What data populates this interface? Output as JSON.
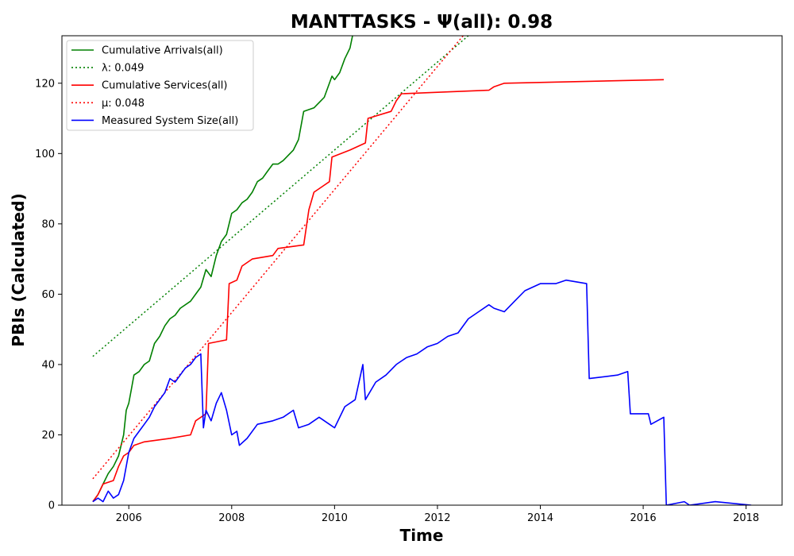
{
  "chart_data": {
    "type": "line",
    "title": "MANTTASKS -  Ψ(all): 0.98",
    "xlabel": "Time",
    "ylabel": "PBIs (Calculated)",
    "xlim": [
      2004.7,
      2018.7
    ],
    "ylim": [
      0,
      133.5
    ],
    "x_ticks": [
      2006,
      2008,
      2010,
      2012,
      2014,
      2016,
      2018
    ],
    "y_ticks": [
      0,
      20,
      40,
      60,
      80,
      100,
      120
    ],
    "grid": false,
    "legend_position": "upper left",
    "series": [
      {
        "name": "Cumulative Arrivals(all)",
        "color": "#008000",
        "style": "solid",
        "points": [
          [
            2005.3,
            1
          ],
          [
            2005.4,
            3
          ],
          [
            2005.5,
            6
          ],
          [
            2005.6,
            9
          ],
          [
            2005.7,
            11
          ],
          [
            2005.8,
            14
          ],
          [
            2005.9,
            20
          ],
          [
            2005.95,
            27
          ],
          [
            2006.0,
            29
          ],
          [
            2006.05,
            33
          ],
          [
            2006.1,
            37
          ],
          [
            2006.2,
            38
          ],
          [
            2006.3,
            40
          ],
          [
            2006.4,
            41
          ],
          [
            2006.5,
            46
          ],
          [
            2006.6,
            48
          ],
          [
            2006.7,
            51
          ],
          [
            2006.8,
            53
          ],
          [
            2006.9,
            54
          ],
          [
            2007.0,
            56
          ],
          [
            2007.2,
            58
          ],
          [
            2007.3,
            60
          ],
          [
            2007.4,
            62
          ],
          [
            2007.5,
            67
          ],
          [
            2007.6,
            65
          ],
          [
            2007.7,
            71
          ],
          [
            2007.8,
            75
          ],
          [
            2007.9,
            77
          ],
          [
            2008.0,
            83
          ],
          [
            2008.1,
            84
          ],
          [
            2008.2,
            86
          ],
          [
            2008.3,
            87
          ],
          [
            2008.4,
            89
          ],
          [
            2008.5,
            92
          ],
          [
            2008.6,
            93
          ],
          [
            2008.7,
            95
          ],
          [
            2008.8,
            97
          ],
          [
            2008.9,
            97
          ],
          [
            2009.0,
            98
          ],
          [
            2009.2,
            101
          ],
          [
            2009.3,
            104
          ],
          [
            2009.4,
            112
          ],
          [
            2009.6,
            113
          ],
          [
            2009.8,
            116
          ],
          [
            2009.95,
            122
          ],
          [
            2010.0,
            121
          ],
          [
            2010.1,
            123
          ],
          [
            2010.2,
            127
          ],
          [
            2010.3,
            130
          ],
          [
            2010.35,
            133.5
          ]
        ]
      },
      {
        "name": "λ: 0.049",
        "color": "#008000",
        "style": "dotted",
        "points": [
          [
            2005.3,
            42.3
          ],
          [
            2012.6,
            133.5
          ]
        ]
      },
      {
        "name": "Cumulative Services(all)",
        "color": "#ff0000",
        "style": "solid",
        "points": [
          [
            2005.3,
            1
          ],
          [
            2005.4,
            3
          ],
          [
            2005.5,
            6
          ],
          [
            2005.7,
            7
          ],
          [
            2005.8,
            11
          ],
          [
            2005.9,
            14
          ],
          [
            2006.0,
            15
          ],
          [
            2006.1,
            17
          ],
          [
            2006.3,
            18
          ],
          [
            2006.8,
            19
          ],
          [
            2007.2,
            20
          ],
          [
            2007.3,
            24
          ],
          [
            2007.5,
            26
          ],
          [
            2007.55,
            46
          ],
          [
            2007.9,
            47
          ],
          [
            2007.95,
            63
          ],
          [
            2008.1,
            64
          ],
          [
            2008.2,
            68
          ],
          [
            2008.4,
            70
          ],
          [
            2008.8,
            71
          ],
          [
            2008.9,
            73
          ],
          [
            2009.4,
            74
          ],
          [
            2009.5,
            84
          ],
          [
            2009.6,
            89
          ],
          [
            2009.8,
            91
          ],
          [
            2009.9,
            92
          ],
          [
            2009.95,
            99
          ],
          [
            2010.3,
            101
          ],
          [
            2010.6,
            103
          ],
          [
            2010.65,
            110
          ],
          [
            2011.1,
            112
          ],
          [
            2011.2,
            115
          ],
          [
            2011.3,
            117
          ],
          [
            2013.0,
            118
          ],
          [
            2013.1,
            119
          ],
          [
            2013.3,
            120
          ],
          [
            2016.4,
            121
          ]
        ]
      },
      {
        "name": "μ: 0.048",
        "color": "#ff0000",
        "style": "dotted",
        "points": [
          [
            2005.3,
            7.5
          ],
          [
            2012.5,
            133.5
          ]
        ]
      },
      {
        "name": "Measured System Size(all)",
        "color": "#0000ff",
        "style": "solid",
        "points": [
          [
            2005.3,
            1
          ],
          [
            2005.4,
            2
          ],
          [
            2005.5,
            1
          ],
          [
            2005.6,
            4
          ],
          [
            2005.7,
            2
          ],
          [
            2005.8,
            3
          ],
          [
            2005.9,
            7
          ],
          [
            2006.0,
            15
          ],
          [
            2006.1,
            19
          ],
          [
            2006.2,
            21
          ],
          [
            2006.3,
            23
          ],
          [
            2006.4,
            25
          ],
          [
            2006.5,
            28
          ],
          [
            2006.6,
            30
          ],
          [
            2006.7,
            32
          ],
          [
            2006.8,
            36
          ],
          [
            2006.9,
            35
          ],
          [
            2007.0,
            37
          ],
          [
            2007.1,
            39
          ],
          [
            2007.2,
            40
          ],
          [
            2007.3,
            42
          ],
          [
            2007.4,
            43
          ],
          [
            2007.45,
            22
          ],
          [
            2007.5,
            27
          ],
          [
            2007.6,
            24
          ],
          [
            2007.7,
            29
          ],
          [
            2007.8,
            32
          ],
          [
            2007.9,
            27
          ],
          [
            2008.0,
            20
          ],
          [
            2008.1,
            21
          ],
          [
            2008.15,
            17
          ],
          [
            2008.3,
            19
          ],
          [
            2008.5,
            23
          ],
          [
            2008.8,
            24
          ],
          [
            2009.0,
            25
          ],
          [
            2009.2,
            27
          ],
          [
            2009.3,
            22
          ],
          [
            2009.5,
            23
          ],
          [
            2009.7,
            25
          ],
          [
            2009.9,
            23
          ],
          [
            2010.0,
            22
          ],
          [
            2010.2,
            28
          ],
          [
            2010.4,
            30
          ],
          [
            2010.55,
            40
          ],
          [
            2010.6,
            30
          ],
          [
            2010.8,
            35
          ],
          [
            2011.0,
            37
          ],
          [
            2011.2,
            40
          ],
          [
            2011.4,
            42
          ],
          [
            2011.6,
            43
          ],
          [
            2011.8,
            45
          ],
          [
            2012.0,
            46
          ],
          [
            2012.2,
            48
          ],
          [
            2012.4,
            49
          ],
          [
            2012.6,
            53
          ],
          [
            2012.8,
            55
          ],
          [
            2013.0,
            57
          ],
          [
            2013.1,
            56
          ],
          [
            2013.3,
            55
          ],
          [
            2013.5,
            58
          ],
          [
            2013.7,
            61
          ],
          [
            2014.0,
            63
          ],
          [
            2014.3,
            63
          ],
          [
            2014.5,
            64
          ],
          [
            2014.9,
            63
          ],
          [
            2014.95,
            36
          ],
          [
            2015.5,
            37
          ],
          [
            2015.7,
            38
          ],
          [
            2015.75,
            26
          ],
          [
            2016.1,
            26
          ],
          [
            2016.15,
            23
          ],
          [
            2016.4,
            25
          ],
          [
            2016.45,
            0
          ],
          [
            2016.8,
            1
          ],
          [
            2016.9,
            0
          ],
          [
            2017.4,
            1
          ],
          [
            2018.1,
            0
          ]
        ]
      }
    ]
  }
}
